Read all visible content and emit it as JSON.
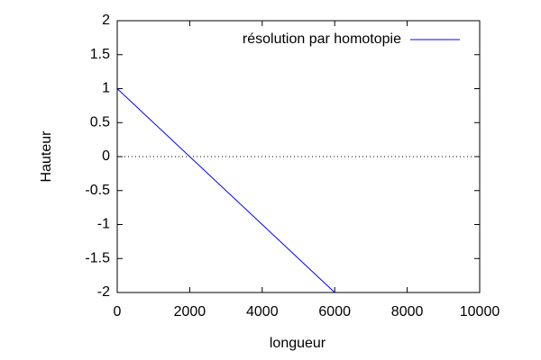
{
  "chart_data": {
    "type": "line",
    "xlabel": "longueur",
    "ylabel": "Hauteur",
    "x": [
      0,
      6000
    ],
    "series": [
      {
        "name": "résolution par homotopie",
        "color": "#0000ff",
        "values": [
          1,
          -2
        ]
      }
    ],
    "xlim": [
      0,
      10000
    ],
    "xticks": [
      0,
      2000,
      4000,
      6000,
      8000,
      10000
    ],
    "ylim": [
      -2,
      2
    ],
    "yticks": [
      -2,
      -1.5,
      -1,
      -0.5,
      0,
      0.5,
      1,
      1.5,
      2
    ],
    "zeroaxis": true,
    "legend": "top-right"
  }
}
